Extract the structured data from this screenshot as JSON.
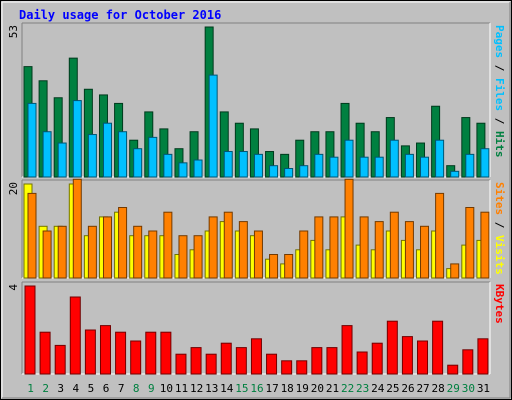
{
  "chart_data": {
    "type": "bar",
    "title": "Daily usage for October 2016",
    "categories": [
      "1",
      "2",
      "3",
      "4",
      "5",
      "6",
      "7",
      "8",
      "9",
      "10",
      "11",
      "12",
      "13",
      "14",
      "15",
      "16",
      "17",
      "18",
      "19",
      "20",
      "21",
      "22",
      "23",
      "24",
      "25",
      "26",
      "27",
      "28",
      "29",
      "30",
      "31"
    ],
    "weekend_days": [
      "1",
      "2",
      "8",
      "9",
      "15",
      "16",
      "22",
      "23",
      "29",
      "30"
    ],
    "panels": [
      {
        "name": "hits-files-pages",
        "ymax_label": "53",
        "ylim": [
          0,
          53
        ],
        "right_legend": [
          "Pages",
          "Files",
          "Hits"
        ],
        "series": [
          {
            "name": "Hits",
            "color": "#008040",
            "values": [
              39,
              34,
              28,
              42,
              31,
              29,
              26,
              13,
              23,
              17,
              10,
              16,
              53,
              23,
              19,
              17,
              9,
              8,
              13,
              16,
              16,
              26,
              19,
              16,
              21,
              11,
              12,
              25,
              4,
              21,
              19
            ]
          },
          {
            "name": "Files",
            "color": "#00c0ff",
            "values": [
              26,
              16,
              12,
              27,
              15,
              19,
              16,
              10,
              14,
              8,
              5,
              6,
              36,
              9,
              9,
              8,
              4,
              3,
              4,
              8,
              7,
              13,
              7,
              7,
              13,
              8,
              7,
              13,
              2,
              8,
              10
            ]
          },
          {
            "name": "Pages",
            "color": "#00c0ff",
            "values": [
              26,
              16,
              12,
              27,
              15,
              19,
              16,
              10,
              14,
              8,
              5,
              6,
              36,
              9,
              9,
              8,
              4,
              3,
              4,
              8,
              7,
              13,
              7,
              7,
              13,
              8,
              7,
              13,
              2,
              8,
              10
            ]
          }
        ]
      },
      {
        "name": "visits-sites",
        "ymax_label": "20",
        "ylim": [
          0,
          20
        ],
        "right_legend": [
          "Sites",
          "Visits"
        ],
        "series": [
          {
            "name": "Visits",
            "color": "#ffff00",
            "values": [
              20,
              11,
              11,
              20,
              9,
              13,
              14,
              9,
              9,
              9,
              5,
              6,
              10,
              12,
              10,
              9,
              4,
              3,
              6,
              8,
              6,
              13,
              7,
              6,
              10,
              8,
              6,
              10,
              2,
              7,
              8
            ]
          },
          {
            "name": "Sites",
            "color": "#ff8000",
            "values": [
              18,
              10,
              11,
              21,
              11,
              13,
              15,
              11,
              10,
              14,
              9,
              9,
              13,
              14,
              12,
              10,
              5,
              5,
              10,
              13,
              13,
              21,
              13,
              12,
              14,
              12,
              11,
              18,
              3,
              15,
              14
            ]
          }
        ]
      },
      {
        "name": "kbytes",
        "ymax_label": "4",
        "ylim": [
          0,
          4
        ],
        "right_legend": [
          "KBytes"
        ],
        "series": [
          {
            "name": "KBytes",
            "color": "#ff0000",
            "values": [
              4.0,
              1.9,
              1.3,
              3.5,
              2.0,
              2.2,
              1.9,
              1.5,
              1.9,
              1.9,
              0.9,
              1.2,
              0.9,
              1.4,
              1.2,
              1.6,
              0.9,
              0.6,
              0.6,
              1.2,
              1.2,
              2.2,
              1.0,
              1.4,
              2.4,
              1.7,
              1.5,
              2.4,
              0.4,
              1.1,
              1.6
            ]
          }
        ]
      }
    ],
    "colors": {
      "background": "#c0c0c0",
      "title": "#0000ff",
      "weekday_label": "#000000",
      "weekend_label": "#008040",
      "legend_sep": "#000000"
    }
  }
}
